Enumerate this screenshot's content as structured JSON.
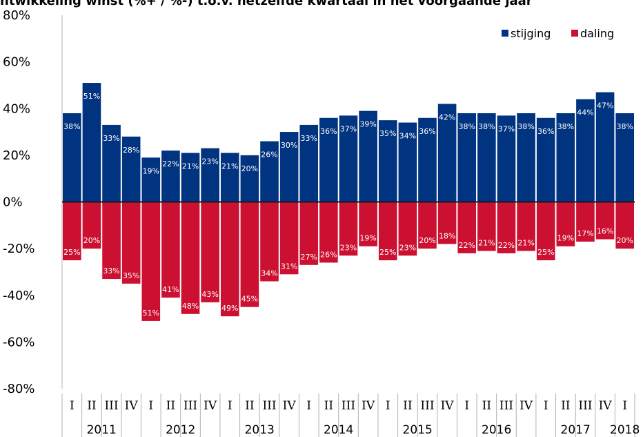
{
  "chart_data": {
    "type": "bar",
    "title": "ntwikkeling winst (%+ / %-) t.o.v. hetzelfde kwartaal in het voorgaande jaar",
    "ylim": [
      -80,
      80
    ],
    "yticks": [
      "80%",
      "60%",
      "40%",
      "20%",
      "0%",
      "-20%",
      "-40%",
      "-60%",
      "-80%"
    ],
    "legend_position": "top-right",
    "colors": {
      "stijging": "#003380",
      "daling": "#cc1031"
    },
    "quarters": [
      "I",
      "II",
      "III",
      "IV",
      "I",
      "II",
      "III",
      "IV",
      "I",
      "II",
      "III",
      "IV",
      "I",
      "II",
      "III",
      "IV",
      "I",
      "II",
      "III",
      "IV",
      "I",
      "II",
      "III",
      "IV",
      "I",
      "II",
      "III",
      "IV",
      "I"
    ],
    "years": [
      "2011",
      "2012",
      "2013",
      "2014",
      "2015",
      "2016",
      "2017",
      "2018"
    ],
    "series": [
      {
        "name": "stijging",
        "values": [
          38,
          51,
          33,
          28,
          19,
          22,
          21,
          23,
          21,
          20,
          26,
          30,
          33,
          36,
          37,
          39,
          35,
          34,
          36,
          42,
          38,
          38,
          37,
          38,
          36,
          38,
          44,
          47,
          38
        ],
        "labels": [
          "38%",
          "51%",
          "33%",
          "28%",
          "19%",
          "22%",
          "21%",
          "23%",
          "21%",
          "20%",
          "26%",
          "30%",
          "33%",
          "36%",
          "37%",
          "39%",
          "35%",
          "34%",
          "36%",
          "42%",
          "38%",
          "38%",
          "37%",
          "38%",
          "36%",
          "38%",
          "44%",
          "47%",
          "38%"
        ]
      },
      {
        "name": "daling",
        "values": [
          -25,
          -20,
          -33,
          -35,
          -51,
          -41,
          -48,
          -43,
          -49,
          -45,
          -34,
          -31,
          -27,
          -26,
          -23,
          -19,
          -25,
          -23,
          -20,
          -18,
          -22,
          -21,
          -22,
          -21,
          -25,
          -19,
          -17,
          -16,
          -20
        ],
        "labels": [
          "25%",
          "20%",
          "33%",
          "35%",
          "51%",
          "41%",
          "48%",
          "43%",
          "49%",
          "45%",
          "34%",
          "31%",
          "27%",
          "26%",
          "23%",
          "19%",
          "25%",
          "23%",
          "20%",
          "18%",
          "22%",
          "21%",
          "22%",
          "21%",
          "25%",
          "19%",
          "17%",
          "16%",
          "20%"
        ]
      }
    ]
  }
}
